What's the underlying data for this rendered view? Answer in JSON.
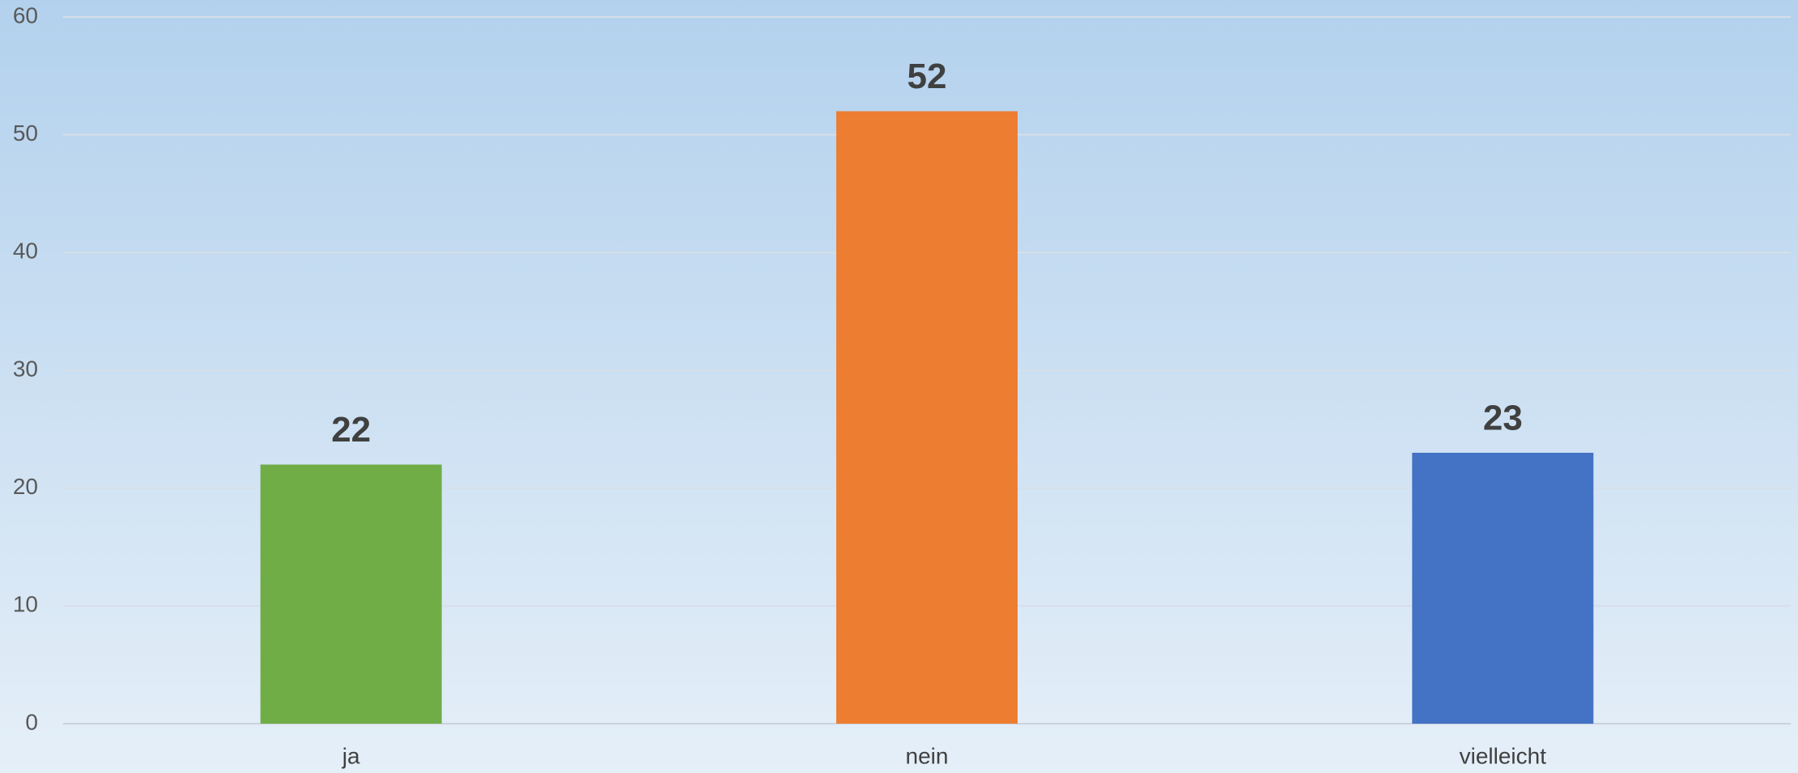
{
  "chart_data": {
    "type": "bar",
    "categories": [
      "ja",
      "nein",
      "vielleicht"
    ],
    "values": [
      22,
      52,
      23
    ],
    "colors": [
      "#70ad47",
      "#ed7d31",
      "#4472c4"
    ],
    "ylim": [
      0,
      60
    ],
    "yticks": [
      0,
      10,
      20,
      30,
      40,
      50,
      60
    ],
    "grid": true
  }
}
